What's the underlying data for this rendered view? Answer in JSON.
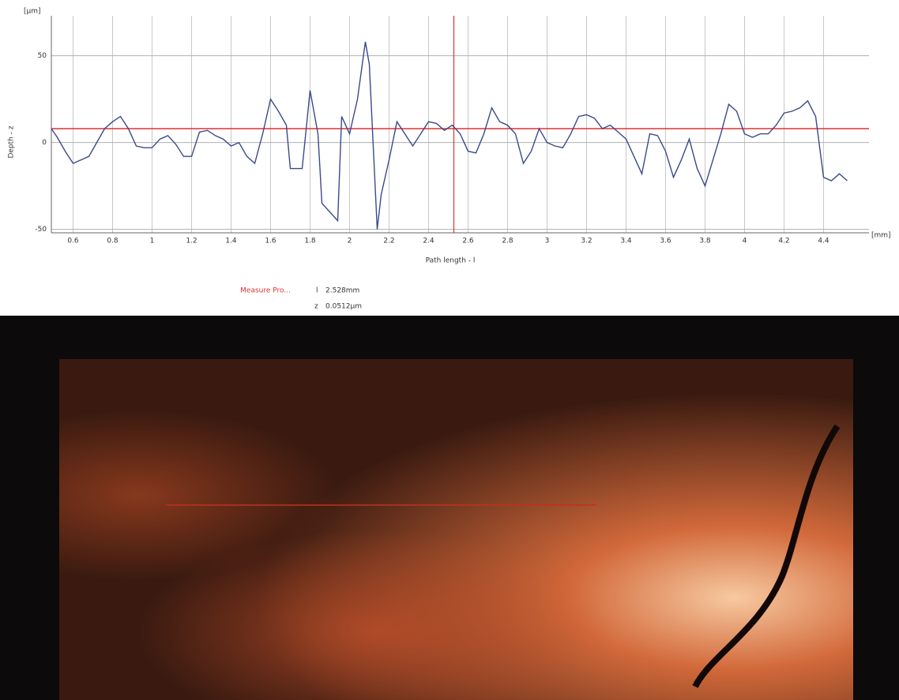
{
  "chart_data": {
    "type": "line",
    "y_unit": "[µm]",
    "x_unit": "[mm]",
    "ylabel": "Depth - z",
    "xlabel": "Path length - l",
    "x": [
      0.49,
      0.52,
      0.56,
      0.6,
      0.64,
      0.68,
      0.72,
      0.76,
      0.8,
      0.84,
      0.88,
      0.92,
      0.96,
      1.0,
      1.04,
      1.08,
      1.12,
      1.16,
      1.2,
      1.24,
      1.28,
      1.32,
      1.36,
      1.4,
      1.44,
      1.48,
      1.52,
      1.56,
      1.6,
      1.64,
      1.68,
      1.7,
      1.76,
      1.8,
      1.84,
      1.86,
      1.9,
      1.94,
      1.96,
      2.0,
      2.04,
      2.08,
      2.1,
      2.14,
      2.16,
      2.2,
      2.24,
      2.28,
      2.32,
      2.36,
      2.4,
      2.44,
      2.48,
      2.52,
      2.56,
      2.6,
      2.64,
      2.68,
      2.72,
      2.76,
      2.8,
      2.84,
      2.88,
      2.92,
      2.96,
      3.0,
      3.04,
      3.08,
      3.12,
      3.16,
      3.2,
      3.24,
      3.28,
      3.32,
      3.36,
      3.4,
      3.44,
      3.48,
      3.52,
      3.56,
      3.6,
      3.64,
      3.68,
      3.72,
      3.76,
      3.8,
      3.84,
      3.88,
      3.92,
      3.96,
      4.0,
      4.04,
      4.08,
      4.12,
      4.16,
      4.2,
      4.24,
      4.28,
      4.32,
      4.36,
      4.4,
      4.44,
      4.48,
      4.52
    ],
    "series": [
      {
        "color": "#3a4a8a",
        "values": [
          8,
          3,
          -5,
          -12,
          -10,
          -8,
          0,
          8,
          12,
          15,
          8,
          -2,
          -3,
          -3,
          2,
          4,
          -1,
          -8,
          -8,
          6,
          7,
          4,
          2,
          -2,
          0,
          -8,
          -12,
          5,
          25,
          18,
          10,
          -15,
          -15,
          30,
          5,
          -35,
          -40,
          -45,
          15,
          5,
          25,
          58,
          45,
          -50,
          -30,
          -10,
          12,
          5,
          -2,
          5,
          12,
          11,
          7,
          10,
          5,
          -5,
          -6,
          5,
          20,
          12,
          10,
          5,
          -12,
          -5,
          8,
          0,
          -2,
          -3,
          5,
          15,
          16,
          14,
          8,
          10,
          6,
          2,
          -8,
          -18,
          5,
          4,
          -5,
          -20,
          -10,
          2,
          -15,
          -25,
          -10,
          5,
          22,
          18,
          5,
          3,
          5,
          5,
          10,
          17,
          18,
          20,
          24,
          15,
          -20,
          -22,
          -18,
          -22
        ]
      }
    ],
    "reference_level": 8,
    "measure_x": 2.528,
    "reference_color": "#e03030",
    "xlim": [
      0.49,
      4.63
    ],
    "ylim": [
      -52,
      73
    ],
    "xticks": [
      0.6,
      0.8,
      1,
      1.2,
      1.4,
      1.6,
      1.8,
      2,
      2.2,
      2.4,
      2.6,
      2.8,
      3,
      3.2,
      3.4,
      3.6,
      3.8,
      4,
      4.2,
      4.4
    ],
    "yticks": [
      -50,
      0,
      50
    ],
    "grid": true
  },
  "measure": {
    "label": "Measure Pro...",
    "l_symbol": "l",
    "l_value": "2.528mm",
    "z_symbol": "z",
    "z_value": "0.0512µm"
  }
}
